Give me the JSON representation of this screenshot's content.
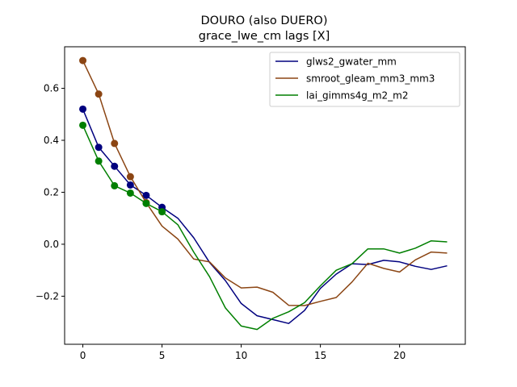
{
  "chart_data": {
    "type": "line",
    "title": "DOURO (also DUERO)",
    "subtitle": "grace_lwe_cm lags [X]",
    "xlabel": "",
    "ylabel": "",
    "xlim": [
      -1.15,
      24.15
    ],
    "ylim": [
      -0.385,
      0.76
    ],
    "x_ticks": [
      0,
      5,
      10,
      15,
      20
    ],
    "y_ticks": [
      -0.2,
      0.0,
      0.2,
      0.4,
      0.6
    ],
    "y_tick_labels": [
      "−0.2",
      "0.0",
      "0.2",
      "0.4",
      "0.6"
    ],
    "legend_position": "top-right",
    "grid": false,
    "series": [
      {
        "name": "glws2_gwater_mm",
        "color": "#00007f",
        "x": [
          0,
          1,
          2,
          3,
          4,
          5,
          6,
          7,
          8,
          9,
          10,
          11,
          12,
          13,
          14,
          15,
          16,
          17,
          18,
          19,
          20,
          21,
          22,
          23
        ],
        "values": [
          0.52,
          0.373,
          0.3,
          0.228,
          0.188,
          0.142,
          0.1,
          0.025,
          -0.07,
          -0.14,
          -0.228,
          -0.275,
          -0.29,
          -0.305,
          -0.255,
          -0.17,
          -0.115,
          -0.075,
          -0.078,
          -0.062,
          -0.068,
          -0.085,
          -0.097,
          -0.083
        ],
        "marker_points": 6
      },
      {
        "name": "smroot_gleam_mm3_mm3",
        "color": "#8b4513",
        "x": [
          0,
          1,
          2,
          3,
          4,
          5,
          6,
          7,
          8,
          9,
          10,
          11,
          12,
          13,
          14,
          15,
          16,
          17,
          18,
          19,
          20,
          21,
          22,
          23
        ],
        "values": [
          0.707,
          0.578,
          0.388,
          0.26,
          0.16,
          0.07,
          0.02,
          -0.057,
          -0.068,
          -0.13,
          -0.168,
          -0.165,
          -0.185,
          -0.235,
          -0.236,
          -0.22,
          -0.205,
          -0.145,
          -0.073,
          -0.093,
          -0.107,
          -0.06,
          -0.03,
          -0.034
        ],
        "marker_points": 5
      },
      {
        "name": "lai_gimms4g_m2_m2",
        "color": "#007f00",
        "x": [
          0,
          1,
          2,
          3,
          4,
          5,
          6,
          7,
          8,
          9,
          10,
          11,
          12,
          13,
          14,
          15,
          16,
          17,
          18,
          19,
          20,
          21,
          22,
          23
        ],
        "values": [
          0.458,
          0.32,
          0.225,
          0.197,
          0.157,
          0.125,
          0.075,
          -0.03,
          -0.125,
          -0.245,
          -0.315,
          -0.328,
          -0.285,
          -0.26,
          -0.225,
          -0.16,
          -0.1,
          -0.075,
          -0.018,
          -0.018,
          -0.034,
          -0.015,
          0.013,
          0.009
        ],
        "marker_points": 6
      }
    ]
  }
}
